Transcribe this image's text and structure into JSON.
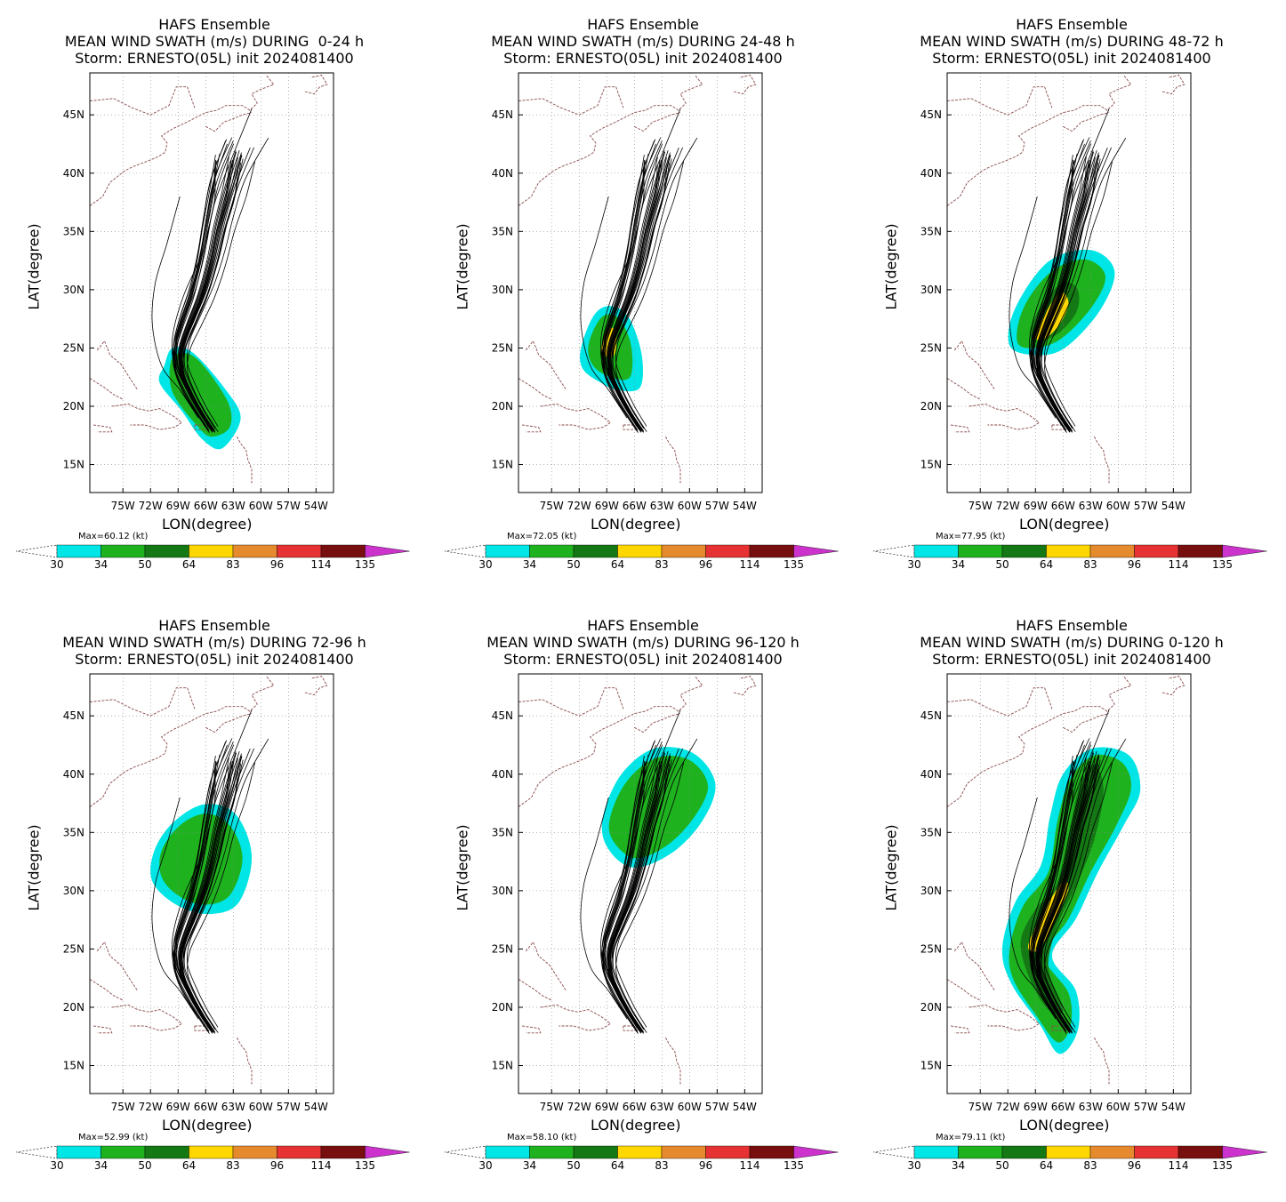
{
  "ensemble_title": "HAFS Ensemble",
  "storm_line": "Storm: ERNESTO(05L) init 2024081400",
  "panels": [
    {
      "title2": "MEAN WIND SWATH (m/s) DURING  0-24 h",
      "max_label": "Max=60.12 (kt)"
    },
    {
      "title2": "MEAN WIND SWATH (m/s) DURING 24-48 h",
      "max_label": "Max=72.05 (kt)"
    },
    {
      "title2": "MEAN WIND SWATH (m/s) DURING 48-72 h",
      "max_label": "Max=77.95 (kt)"
    },
    {
      "title2": "MEAN WIND SWATH (m/s) DURING 72-96 h",
      "max_label": "Max=52.99 (kt)"
    },
    {
      "title2": "MEAN WIND SWATH (m/s) DURING 96-120 h",
      "max_label": "Max=58.10 (kt)"
    },
    {
      "title2": "MEAN WIND SWATH (m/s) DURING 0-120 h",
      "max_label": "Max=79.11 (kt)"
    }
  ],
  "axes": {
    "xlabel": "LON(degree)",
    "ylabel": "LAT(degree)",
    "lon_ticks": [
      "75W",
      "72W",
      "69W",
      "66W",
      "63W",
      "60W",
      "57W",
      "54W"
    ],
    "lat_ticks": [
      "15N",
      "20N",
      "25N",
      "30N",
      "35N",
      "40N",
      "45N"
    ]
  },
  "colorbar": {
    "levels": [
      "30",
      "34",
      "50",
      "64",
      "83",
      "96",
      "114",
      "135"
    ],
    "colors": [
      "#00e5e5",
      "#1fb21f",
      "#147814",
      "#ffd700",
      "#e68a2e",
      "#e63232",
      "#780f0f",
      "#cc33cc"
    ]
  }
}
